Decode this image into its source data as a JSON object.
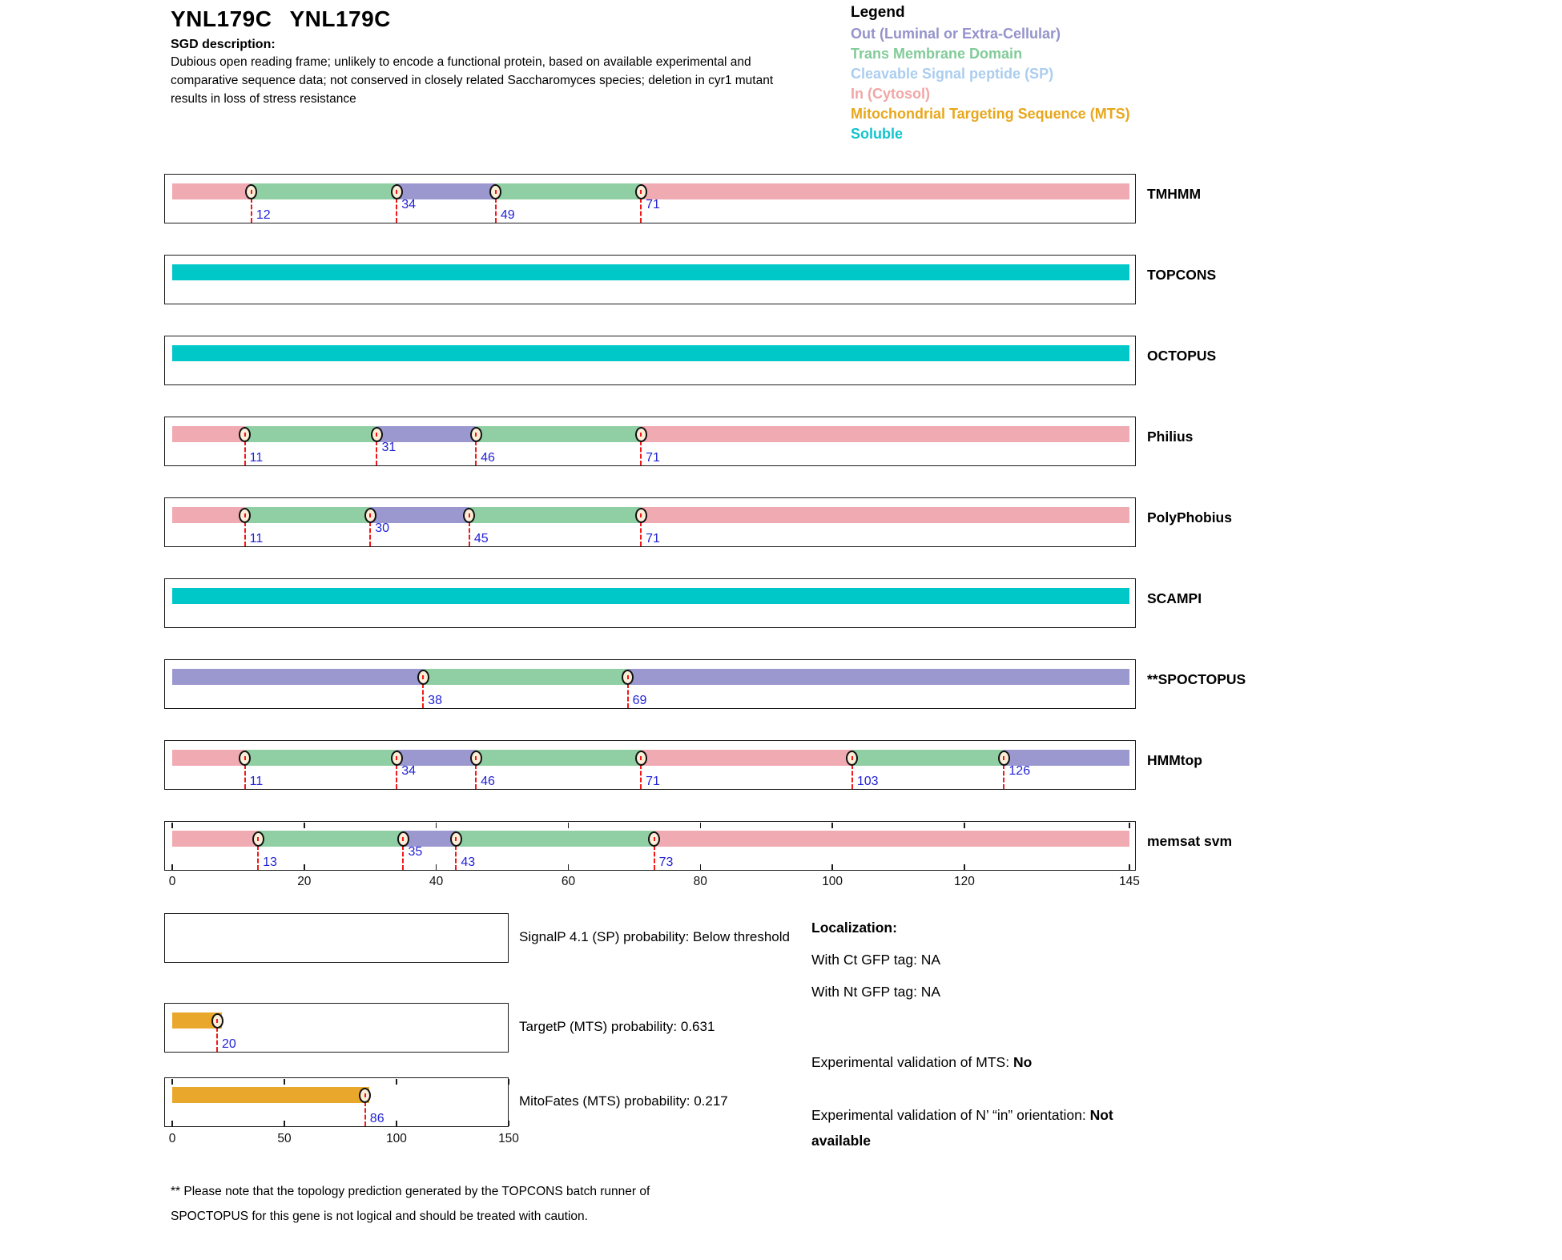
{
  "header": {
    "title_gene": "YNL179C",
    "title_alias": "YNL179C",
    "sgd_label": "SGD description:",
    "description_lines": [
      "Dubious open reading frame; unlikely to encode a functional protein, based on available experimental and",
      "comparative sequence data; not conserved in closely related Saccharomyces species; deletion in cyr1 mutant",
      "results in loss of stress resistance"
    ]
  },
  "legend": {
    "title": "Legend",
    "items": [
      {
        "label": "Out (Luminal or Extra-Cellular)",
        "color": "#9493CB"
      },
      {
        "label": "Trans Membrane Domain",
        "color": "#82CB99"
      },
      {
        "label": "Cleavable Signal peptide (SP)",
        "color": "#ABCDEF"
      },
      {
        "label": "In (Cytosol)",
        "color": "#F2A6A6"
      },
      {
        "label": "Mitochondrial Targeting Sequence (MTS)",
        "color": "#E8A71C"
      },
      {
        "label": "Soluble",
        "color": "#12C4CE"
      }
    ]
  },
  "colors": {
    "in": "#F0AAB1",
    "tm": "#90CFA3",
    "out": "#9A98CF",
    "soluble": "#00C7C8",
    "mts": "#E9A72B",
    "marker_fill": "#FBEED8",
    "marker_border": "#111111",
    "dash_red": "#F01818",
    "number_blue": "#2222D8"
  },
  "chart_data": {
    "type": "topology-tracks",
    "x_range": [
      0,
      145
    ],
    "x_ticks": [
      0,
      20,
      40,
      60,
      80,
      100,
      120,
      145
    ],
    "rows": [
      {
        "name": "TMHMM",
        "segments": [
          {
            "t": "in",
            "s": 0,
            "e": 12
          },
          {
            "t": "tm",
            "s": 12,
            "e": 34
          },
          {
            "t": "out",
            "s": 34,
            "e": 49
          },
          {
            "t": "tm",
            "s": 49,
            "e": 71
          },
          {
            "t": "in",
            "s": 71,
            "e": 145
          }
        ],
        "markers": [
          {
            "p": 12,
            "lv": "low"
          },
          {
            "p": 34,
            "lv": "high"
          },
          {
            "p": 49,
            "lv": "low"
          },
          {
            "p": 71,
            "lv": "high"
          }
        ]
      },
      {
        "name": "TOPCONS",
        "segments": [
          {
            "t": "soluble",
            "s": 0,
            "e": 145
          }
        ],
        "markers": []
      },
      {
        "name": "OCTOPUS",
        "segments": [
          {
            "t": "soluble",
            "s": 0,
            "e": 145
          }
        ],
        "markers": []
      },
      {
        "name": "Philius",
        "segments": [
          {
            "t": "in",
            "s": 0,
            "e": 11
          },
          {
            "t": "tm",
            "s": 11,
            "e": 31
          },
          {
            "t": "out",
            "s": 31,
            "e": 46
          },
          {
            "t": "tm",
            "s": 46,
            "e": 71
          },
          {
            "t": "in",
            "s": 71,
            "e": 145
          }
        ],
        "markers": [
          {
            "p": 11,
            "lv": "low"
          },
          {
            "p": 31,
            "lv": "high"
          },
          {
            "p": 46,
            "lv": "low"
          },
          {
            "p": 71,
            "lv": "low"
          }
        ]
      },
      {
        "name": "PolyPhobius",
        "segments": [
          {
            "t": "in",
            "s": 0,
            "e": 11
          },
          {
            "t": "tm",
            "s": 11,
            "e": 30
          },
          {
            "t": "out",
            "s": 30,
            "e": 45
          },
          {
            "t": "tm",
            "s": 45,
            "e": 71
          },
          {
            "t": "in",
            "s": 71,
            "e": 145
          }
        ],
        "markers": [
          {
            "p": 11,
            "lv": "low"
          },
          {
            "p": 30,
            "lv": "high"
          },
          {
            "p": 45,
            "lv": "low"
          },
          {
            "p": 71,
            "lv": "low"
          }
        ]
      },
      {
        "name": "SCAMPI",
        "segments": [
          {
            "t": "soluble",
            "s": 0,
            "e": 145
          }
        ],
        "markers": []
      },
      {
        "name": "**SPOCTOPUS",
        "segments": [
          {
            "t": "out",
            "s": 0,
            "e": 38
          },
          {
            "t": "tm",
            "s": 38,
            "e": 69
          },
          {
            "t": "out",
            "s": 69,
            "e": 145
          }
        ],
        "markers": [
          {
            "p": 38,
            "lv": "low"
          },
          {
            "p": 69,
            "lv": "low"
          }
        ]
      },
      {
        "name": "HMMtop",
        "segments": [
          {
            "t": "in",
            "s": 0,
            "e": 11
          },
          {
            "t": "tm",
            "s": 11,
            "e": 34
          },
          {
            "t": "out",
            "s": 34,
            "e": 46
          },
          {
            "t": "tm",
            "s": 46,
            "e": 71
          },
          {
            "t": "in",
            "s": 71,
            "e": 103
          },
          {
            "t": "tm",
            "s": 103,
            "e": 126
          },
          {
            "t": "out",
            "s": 126,
            "e": 145
          }
        ],
        "markers": [
          {
            "p": 11,
            "lv": "low"
          },
          {
            "p": 34,
            "lv": "high"
          },
          {
            "p": 46,
            "lv": "low"
          },
          {
            "p": 71,
            "lv": "low"
          },
          {
            "p": 103,
            "lv": "low"
          },
          {
            "p": 126,
            "lv": "high"
          }
        ]
      },
      {
        "name": "memsat svm",
        "segments": [
          {
            "t": "in",
            "s": 0,
            "e": 13
          },
          {
            "t": "tm",
            "s": 13,
            "e": 35
          },
          {
            "t": "out",
            "s": 35,
            "e": 43
          },
          {
            "t": "tm",
            "s": 43,
            "e": 73
          },
          {
            "t": "in",
            "s": 73,
            "e": 145
          }
        ],
        "markers": [
          {
            "p": 13,
            "lv": "low"
          },
          {
            "p": 35,
            "lv": "high"
          },
          {
            "p": 43,
            "lv": "low"
          },
          {
            "p": 73,
            "lv": "low"
          }
        ],
        "ticks": true
      }
    ],
    "prob_x_range": [
      0,
      150
    ],
    "prob_x_ticks": [
      0,
      50,
      100,
      150
    ],
    "probability_tracks": [
      {
        "name": "signalp",
        "label": "SignalP 4.1 (SP) probability: Below threshold",
        "segments": [],
        "markers": []
      },
      {
        "name": "targetp",
        "label": "TargetP (MTS) probability: 0.631",
        "segments": [
          {
            "t": "mts",
            "s": 0,
            "e": 22
          }
        ],
        "markers": [
          {
            "p": 20,
            "lv": "low"
          }
        ]
      },
      {
        "name": "mitofates",
        "label": "MitoFates (MTS) probability: 0.217",
        "segments": [
          {
            "t": "mts",
            "s": 0,
            "e": 88
          }
        ],
        "markers": [
          {
            "p": 86,
            "lv": "low"
          }
        ],
        "ticks": true
      }
    ]
  },
  "localization": {
    "title": "Localization:",
    "items": [
      "With Ct GFP tag: NA",
      "With Nt GFP tag: NA"
    ],
    "mts_label": "Experimental validation of MTS:",
    "mts_value": "No",
    "orient_label": "Experimental validation of N’ “in” orientation:",
    "orient_value": "Not available"
  },
  "footnote": {
    "lines": [
      "** Please note that the topology prediction generated by the TOPCONS batch runner of",
      "SPOCTOPUS for this gene is not logical and should be treated with caution."
    ]
  }
}
